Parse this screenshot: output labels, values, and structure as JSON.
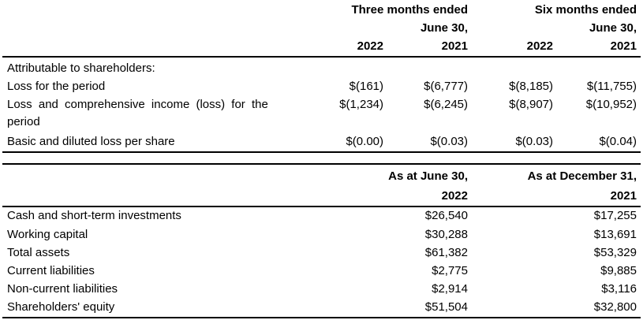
{
  "top_table": {
    "header": {
      "three_months_line1": "Three months ended",
      "three_months_line2": "June 30,",
      "six_months_line1": "Six months ended",
      "six_months_line2": "June 30,",
      "years": [
        "2022",
        "2021",
        "2022",
        "2021"
      ]
    },
    "section_label": "Attributable to shareholders:",
    "rows": [
      {
        "label": "Loss for the period",
        "values": [
          "$(161)",
          "$(6,777)",
          "$(8,185)",
          "$(11,755)"
        ]
      },
      {
        "label_line1": "Loss and comprehensive income (loss) for the",
        "label_line2": "period",
        "values": [
          "$(1,234)",
          "$(6,245)",
          "$(8,907)",
          "$(10,952)"
        ]
      },
      {
        "label": "Basic and diluted loss per share",
        "values": [
          "$(0.00)",
          "$(0.03)",
          "$(0.03)",
          "$(0.04)"
        ]
      }
    ]
  },
  "bottom_table": {
    "header": {
      "col1_line1": "As at June 30,",
      "col1_line2": "2022",
      "col2_line1": "As at December 31,",
      "col2_line2": "2021"
    },
    "rows": [
      {
        "label": "Cash and short-term investments",
        "values": [
          "$26,540",
          "$17,255"
        ]
      },
      {
        "label": "Working capital",
        "values": [
          "$30,288",
          "$13,691"
        ]
      },
      {
        "label": "Total assets",
        "values": [
          "$61,382",
          "$53,329"
        ]
      },
      {
        "label": "Current liabilities",
        "values": [
          "$2,775",
          "$9,885"
        ]
      },
      {
        "label": "Non-current liabilities",
        "values": [
          "$2,914",
          "$3,116"
        ]
      },
      {
        "label": "Shareholders' equity",
        "values": [
          "$51,504",
          "$32,800"
        ]
      }
    ]
  }
}
